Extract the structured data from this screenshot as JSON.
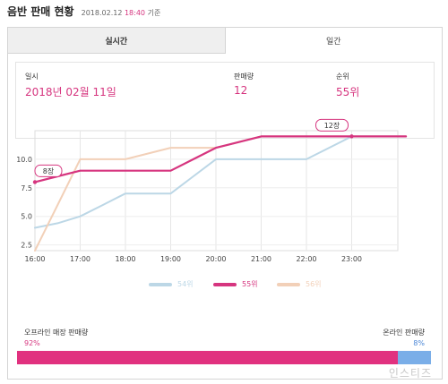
{
  "header": {
    "title": "음반 판매 현황",
    "date": "2018.02.12",
    "time": "18:40",
    "suffix": "기준"
  },
  "tabs": [
    {
      "label": "실시간"
    },
    {
      "label": "일간"
    }
  ],
  "info": {
    "date": {
      "label": "일시",
      "value": "2018년 02월 11일"
    },
    "sales": {
      "label": "판매량",
      "value": "12"
    },
    "rank": {
      "label": "순위",
      "value": "55위"
    }
  },
  "chart_data": {
    "type": "line",
    "x": [
      "16:00",
      "17:00",
      "18:00",
      "19:00",
      "20:00",
      "21:00",
      "22:00",
      "23:00"
    ],
    "yticks": [
      "2.5",
      "5.0",
      "7.5",
      "10.0"
    ],
    "ylim": [
      2,
      12.5
    ],
    "series": [
      {
        "name": "54위",
        "color": "#bcd7e6",
        "points": [
          [
            0,
            4
          ],
          [
            0.5,
            4.4
          ],
          [
            1,
            5
          ],
          [
            1.5,
            6
          ],
          [
            2,
            7
          ],
          [
            3,
            7
          ],
          [
            3.5,
            8.5
          ],
          [
            4,
            10
          ],
          [
            6,
            10
          ],
          [
            7,
            12
          ],
          [
            8.2,
            12
          ]
        ]
      },
      {
        "name": "55위",
        "color": "#d6357f",
        "points": [
          [
            0,
            8
          ],
          [
            0.5,
            8.5
          ],
          [
            1,
            9
          ],
          [
            3,
            9
          ],
          [
            3.5,
            10
          ],
          [
            4,
            11
          ],
          [
            5,
            12
          ],
          [
            8.2,
            12
          ]
        ]
      },
      {
        "name": "56위",
        "color": "#f2d0b8",
        "points": [
          [
            0,
            2
          ],
          [
            0.5,
            6
          ],
          [
            1,
            10
          ],
          [
            2,
            10
          ],
          [
            3,
            11
          ],
          [
            4,
            11
          ],
          [
            5,
            12
          ],
          [
            8.2,
            12
          ]
        ]
      }
    ],
    "callouts": [
      {
        "text": "8장",
        "x": 0,
        "y": 8
      },
      {
        "text": "12장",
        "x": 7,
        "y": 12
      }
    ],
    "grid": true
  },
  "sales_split": {
    "offline": {
      "label": "오프라인 매장 판매량",
      "pct": "92%",
      "value": 92
    },
    "online": {
      "label": "온라인 판매량",
      "pct": "8%",
      "value": 8
    }
  },
  "watermark": "인스티즈"
}
